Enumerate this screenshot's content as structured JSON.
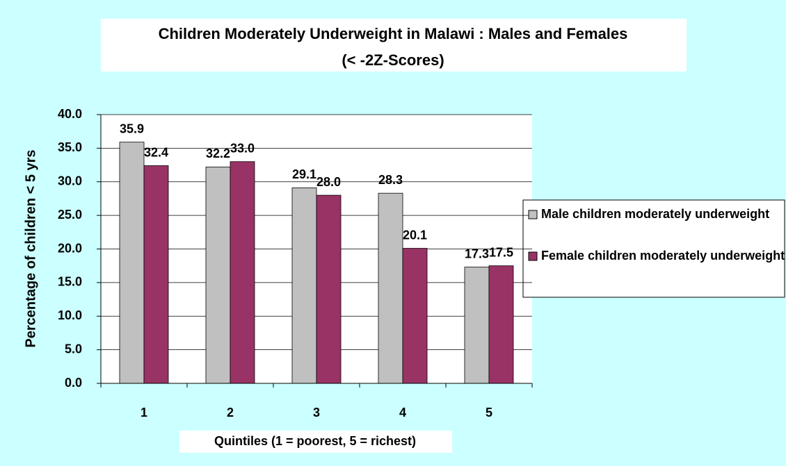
{
  "chart_data": {
    "type": "bar",
    "title": "Children Moderately Underweight in Malawi : Males and Females",
    "subtitle": "(< -2Z-Scores)",
    "x_label": "Quintiles (1 = poorest, 5 = richest)",
    "y_label": "Percentage of children < 5 yrs",
    "categories": [
      "1",
      "2",
      "3",
      "4",
      "5"
    ],
    "series": [
      {
        "name": "Male children moderately underweight",
        "color": "#c0c0c0",
        "values": [
          35.9,
          32.2,
          29.1,
          28.3,
          17.3
        ],
        "value_labels": [
          "35.9",
          "32.2",
          "29.1",
          "28.3",
          "17.3"
        ]
      },
      {
        "name": "Female children moderately underweight",
        "color": "#993366",
        "values": [
          32.4,
          33.0,
          28.0,
          20.1,
          17.5
        ],
        "value_labels": [
          "32.4",
          "33.0",
          "28.0",
          "20.1",
          "17.5"
        ]
      }
    ],
    "ylim": [
      0,
      40
    ],
    "yticks": [
      {
        "value": 0,
        "label": "0.0"
      },
      {
        "value": 5,
        "label": "5.0"
      },
      {
        "value": 10,
        "label": "10.0"
      },
      {
        "value": 15,
        "label": "15.0"
      },
      {
        "value": 20,
        "label": "20.0"
      },
      {
        "value": 25,
        "label": "25.0"
      },
      {
        "value": 30,
        "label": "30.0"
      },
      {
        "value": 35,
        "label": "35.0"
      },
      {
        "value": 40,
        "label": "40.0"
      }
    ],
    "grid": true,
    "legend": "right"
  }
}
